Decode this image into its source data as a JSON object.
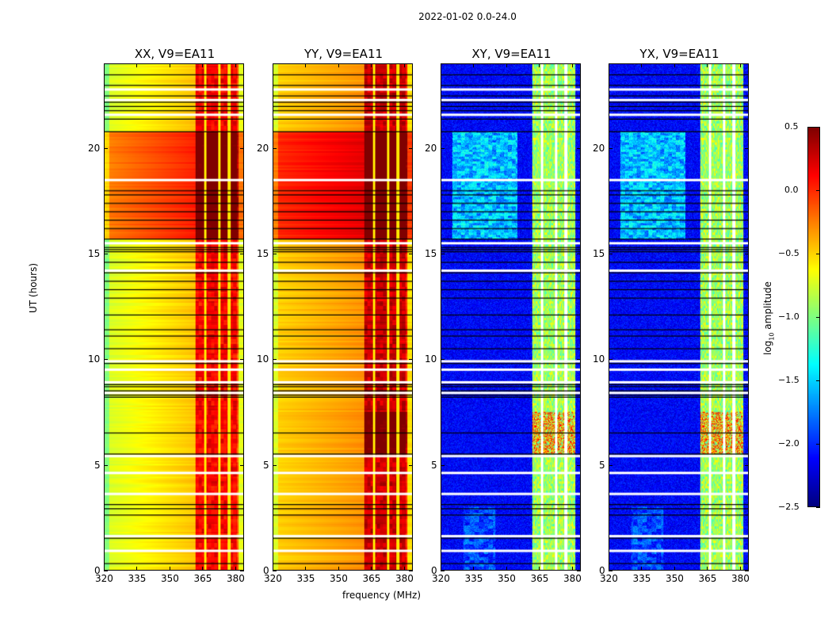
{
  "chart_data": {
    "type": "heatmap",
    "title": "2022-01-02 0.0-24.0",
    "xlabel": "frequency (MHz)",
    "ylabel": "UT (hours)",
    "xlim": [
      320,
      384
    ],
    "ylim": [
      0,
      24
    ],
    "xticks": [
      320,
      335,
      350,
      365,
      380
    ],
    "yticks": [
      0,
      5,
      10,
      15,
      20
    ],
    "panels": [
      {
        "title": "XX, V9=EA11",
        "kind": "parallel",
        "base_low": -0.75,
        "base_high": -0.45
      },
      {
        "title": "YY, V9=EA11",
        "kind": "parallel",
        "base_low": -0.5,
        "base_high": -0.3
      },
      {
        "title": "XY, V9=EA11",
        "kind": "cross",
        "base_low": -2.2,
        "base_high": -2.2
      },
      {
        "title": "YX, V9=EA11",
        "kind": "cross",
        "base_low": -2.2,
        "base_high": -2.2
      }
    ],
    "rfi_band_mhz": [
      362,
      382
    ],
    "elevated_period_hours": [
      15.7,
      20.8
    ],
    "flagged_white_hours": [
      0.9,
      1.6,
      3.6,
      4.6,
      5.4,
      8.4,
      8.9,
      9.5,
      9.9,
      14.2,
      15.5,
      18.5,
      21.6,
      22.3,
      22.8
    ],
    "black_line_hours": [
      0.3,
      1.5,
      2.6,
      2.9,
      3.1,
      5.5,
      6.5,
      8.2,
      8.3,
      8.5,
      8.7,
      8.8,
      9.8,
      10.5,
      11.1,
      11.4,
      12.1,
      12.9,
      13.3,
      13.7,
      14.1,
      14.6,
      15.1,
      15.2,
      15.3,
      15.7,
      16.2,
      16.6,
      17.0,
      17.4,
      17.8,
      18.0,
      20.8,
      21.4,
      21.8,
      22.0,
      22.2,
      22.5,
      23.0,
      23.5
    ],
    "colorbar": {
      "label": "log₁₀ amplitude",
      "label_main": "log",
      "label_sub": "10",
      "label_rest": " amplitude",
      "range": [
        -2.5,
        0.5
      ],
      "ticks": [
        "0.5",
        "0.0",
        "−0.5",
        "−1.0",
        "−1.5",
        "−2.0",
        "−2.5"
      ],
      "tick_values": [
        0.5,
        0,
        -0.5,
        -1,
        -1.5,
        -2,
        -2.5
      ],
      "colormap": "jet"
    }
  }
}
